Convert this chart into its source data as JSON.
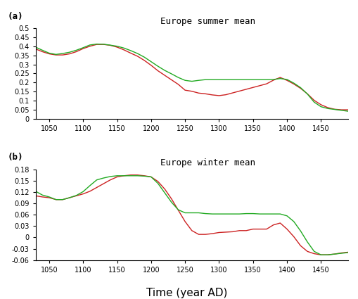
{
  "title_a": "Europe summer mean",
  "title_b": "Europe winter mean",
  "xlabel": "Time (year AD)",
  "label_a": "(a)",
  "label_b": "(b)",
  "ylim_a": [
    0,
    0.5
  ],
  "ylim_b": [
    -0.06,
    0.18
  ],
  "yticks_a": [
    0,
    0.05,
    0.1,
    0.15,
    0.2,
    0.25,
    0.3,
    0.35,
    0.4,
    0.45,
    0.5
  ],
  "yticks_b": [
    -0.06,
    -0.03,
    0,
    0.03,
    0.06,
    0.09,
    0.12,
    0.15,
    0.18
  ],
  "xlim": [
    1030,
    1490
  ],
  "xticks": [
    1050,
    1100,
    1150,
    1200,
    1250,
    1300,
    1350,
    1400,
    1450
  ],
  "color_red": "#cc2222",
  "color_green": "#22aa22",
  "bg_color": "#ffffff",
  "summer_red_x": [
    1030,
    1040,
    1050,
    1060,
    1070,
    1080,
    1090,
    1100,
    1110,
    1120,
    1130,
    1140,
    1150,
    1160,
    1170,
    1180,
    1190,
    1200,
    1210,
    1220,
    1230,
    1240,
    1250,
    1260,
    1270,
    1280,
    1290,
    1300,
    1310,
    1320,
    1330,
    1340,
    1350,
    1360,
    1370,
    1380,
    1390,
    1400,
    1410,
    1420,
    1430,
    1440,
    1450,
    1460,
    1470,
    1480,
    1490
  ],
  "summer_red_y": [
    0.385,
    0.37,
    0.358,
    0.352,
    0.352,
    0.358,
    0.37,
    0.387,
    0.4,
    0.41,
    0.41,
    0.405,
    0.395,
    0.38,
    0.362,
    0.345,
    0.322,
    0.295,
    0.265,
    0.24,
    0.215,
    0.19,
    0.158,
    0.152,
    0.142,
    0.138,
    0.132,
    0.128,
    0.133,
    0.143,
    0.153,
    0.163,
    0.173,
    0.183,
    0.193,
    0.213,
    0.228,
    0.212,
    0.192,
    0.168,
    0.138,
    0.102,
    0.078,
    0.062,
    0.053,
    0.05,
    0.05
  ],
  "summer_green_x": [
    1030,
    1040,
    1050,
    1060,
    1070,
    1080,
    1090,
    1100,
    1110,
    1120,
    1130,
    1140,
    1150,
    1160,
    1170,
    1180,
    1190,
    1200,
    1210,
    1220,
    1230,
    1240,
    1250,
    1260,
    1270,
    1280,
    1290,
    1300,
    1310,
    1320,
    1330,
    1340,
    1350,
    1360,
    1370,
    1380,
    1390,
    1400,
    1410,
    1420,
    1430,
    1440,
    1450,
    1460,
    1470,
    1480,
    1490
  ],
  "summer_green_y": [
    0.395,
    0.378,
    0.362,
    0.355,
    0.36,
    0.367,
    0.378,
    0.392,
    0.407,
    0.412,
    0.411,
    0.406,
    0.4,
    0.39,
    0.376,
    0.36,
    0.34,
    0.315,
    0.29,
    0.267,
    0.248,
    0.228,
    0.212,
    0.207,
    0.212,
    0.216,
    0.216,
    0.216,
    0.216,
    0.216,
    0.216,
    0.216,
    0.216,
    0.216,
    0.216,
    0.217,
    0.222,
    0.217,
    0.197,
    0.172,
    0.137,
    0.092,
    0.067,
    0.057,
    0.052,
    0.047,
    0.042
  ],
  "winter_red_x": [
    1030,
    1040,
    1050,
    1060,
    1070,
    1080,
    1090,
    1100,
    1110,
    1120,
    1130,
    1140,
    1150,
    1160,
    1170,
    1180,
    1190,
    1200,
    1210,
    1220,
    1230,
    1240,
    1250,
    1260,
    1270,
    1280,
    1290,
    1300,
    1310,
    1320,
    1330,
    1340,
    1350,
    1360,
    1370,
    1380,
    1390,
    1400,
    1410,
    1420,
    1430,
    1440,
    1450,
    1460,
    1470,
    1480,
    1490
  ],
  "winter_red_y": [
    0.11,
    0.107,
    0.105,
    0.1,
    0.1,
    0.105,
    0.11,
    0.115,
    0.122,
    0.132,
    0.142,
    0.152,
    0.16,
    0.163,
    0.165,
    0.165,
    0.163,
    0.16,
    0.148,
    0.128,
    0.102,
    0.072,
    0.042,
    0.018,
    0.008,
    0.008,
    0.01,
    0.013,
    0.014,
    0.015,
    0.018,
    0.018,
    0.022,
    0.022,
    0.022,
    0.033,
    0.038,
    0.022,
    0.002,
    -0.022,
    -0.037,
    -0.043,
    -0.046,
    -0.046,
    -0.044,
    -0.041,
    -0.039
  ],
  "winter_green_x": [
    1030,
    1040,
    1050,
    1060,
    1070,
    1080,
    1090,
    1100,
    1110,
    1120,
    1130,
    1140,
    1150,
    1160,
    1170,
    1180,
    1190,
    1200,
    1210,
    1220,
    1230,
    1240,
    1250,
    1260,
    1270,
    1280,
    1290,
    1300,
    1310,
    1320,
    1330,
    1340,
    1350,
    1360,
    1370,
    1380,
    1390,
    1400,
    1410,
    1420,
    1430,
    1440,
    1450,
    1460,
    1470,
    1480,
    1490
  ],
  "winter_green_y": [
    0.122,
    0.112,
    0.107,
    0.1,
    0.1,
    0.105,
    0.111,
    0.121,
    0.137,
    0.152,
    0.157,
    0.161,
    0.163,
    0.163,
    0.163,
    0.163,
    0.162,
    0.16,
    0.143,
    0.118,
    0.093,
    0.073,
    0.065,
    0.065,
    0.065,
    0.063,
    0.062,
    0.062,
    0.062,
    0.062,
    0.062,
    0.063,
    0.063,
    0.062,
    0.062,
    0.062,
    0.062,
    0.057,
    0.042,
    0.017,
    -0.012,
    -0.037,
    -0.046,
    -0.046,
    -0.044,
    -0.042,
    -0.04
  ]
}
